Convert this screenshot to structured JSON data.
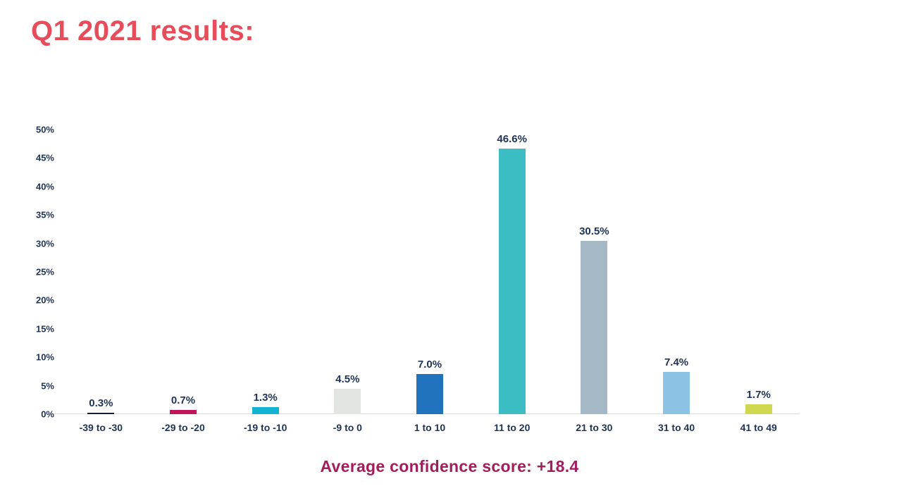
{
  "page": {
    "title": "Q1 2021 results:",
    "footer": "Average confidence score: +18.4"
  },
  "colors": {
    "title_text": "#e64c59",
    "footer_text": "#a21d5c",
    "axis_text": "#1e3355",
    "value_label_text": "#1e3355",
    "baseline": "#d9d9d9"
  },
  "chart_data": {
    "type": "bar",
    "title": "Q1 2021 results:",
    "categories": [
      "-39 to -30",
      "-29 to -20",
      "-19 to -10",
      "-9 to 0",
      "1 to 10",
      "11 to 20",
      "21 to 30",
      "31 to 40",
      "41 to 49"
    ],
    "values": [
      0.3,
      0.7,
      1.3,
      4.5,
      7.0,
      46.6,
      30.5,
      7.4,
      1.7
    ],
    "value_labels": [
      "0.3%",
      "0.7%",
      "1.3%",
      "4.5%",
      "7.0%",
      "46.6%",
      "30.5%",
      "7.4%",
      "1.7%"
    ],
    "bar_colors": [
      "#191d33",
      "#c1175a",
      "#12b2d2",
      "#e3e5e0",
      "#2173bd",
      "#3cbcc3",
      "#a4b9c5",
      "#8cc2e3",
      "#cfd84f"
    ],
    "xlabel": "",
    "ylabel": "",
    "ylim": [
      0,
      50
    ],
    "y_tick_step": 5,
    "y_ticks": [
      "0%",
      "5%",
      "10%",
      "15%",
      "20%",
      "25%",
      "30%",
      "35%",
      "40%",
      "45%",
      "50%"
    ],
    "grid": false,
    "legend": false,
    "annotation": "Average confidence score: +18.4"
  }
}
